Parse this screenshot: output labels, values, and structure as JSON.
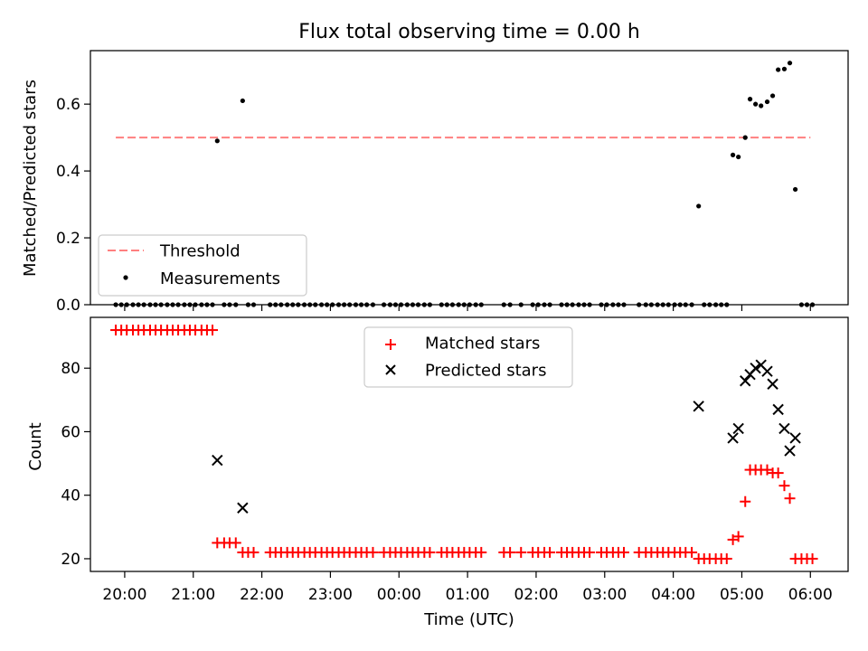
{
  "title": "Flux total observing time = 0.00 h",
  "colors": {
    "threshold": "#ff7f7f",
    "measurement": "#000000",
    "matched": "#ff0000",
    "predicted": "#000000"
  },
  "chart_data": [
    {
      "type": "scatter",
      "ylabel": "Matched/Predicted stars",
      "xlim": [
        19.5,
        30.55
      ],
      "ylim": [
        0,
        0.76
      ],
      "yticks": [
        0.0,
        0.2,
        0.4,
        0.6
      ],
      "ytick_labels": [
        "0.0",
        "0.2",
        "0.4",
        "0.6"
      ],
      "legend_placement": "lower-left",
      "threshold": {
        "name": "Threshold",
        "value": 0.5,
        "x_range": [
          19.87,
          30.0
        ]
      },
      "series": [
        {
          "name": "Measurements",
          "points": [
            [
              21.35,
              0.49
            ],
            [
              21.72,
              0.61
            ],
            [
              28.37,
              0.295
            ],
            [
              28.87,
              0.448
            ],
            [
              28.95,
              0.442
            ],
            [
              29.05,
              0.5
            ],
            [
              29.12,
              0.615
            ],
            [
              29.2,
              0.6
            ],
            [
              29.28,
              0.595
            ],
            [
              29.37,
              0.607
            ],
            [
              29.45,
              0.625
            ],
            [
              29.53,
              0.703
            ],
            [
              29.62,
              0.705
            ],
            [
              29.7,
              0.723
            ],
            [
              29.78,
              0.345
            ]
          ],
          "zero_values_x": [
            19.87,
            19.95,
            20.03,
            20.12,
            20.2,
            20.28,
            20.37,
            20.45,
            20.53,
            20.62,
            20.7,
            20.78,
            20.87,
            20.95,
            21.03,
            21.12,
            21.2,
            21.28,
            21.45,
            21.53,
            21.62,
            21.8,
            21.88,
            22.12,
            22.2,
            22.28,
            22.37,
            22.45,
            22.53,
            22.62,
            22.7,
            22.78,
            22.87,
            22.95,
            23.03,
            23.12,
            23.2,
            23.28,
            23.37,
            23.45,
            23.53,
            23.62,
            23.78,
            23.87,
            23.95,
            24.03,
            24.12,
            24.2,
            24.28,
            24.37,
            24.45,
            24.62,
            24.7,
            24.78,
            24.87,
            24.95,
            25.03,
            25.12,
            25.2,
            25.53,
            25.62,
            25.78,
            25.95,
            26.03,
            26.12,
            26.2,
            26.37,
            26.45,
            26.53,
            26.62,
            26.7,
            26.78,
            26.95,
            27.03,
            27.12,
            27.2,
            27.28,
            27.5,
            27.6,
            27.68,
            27.77,
            27.85,
            27.93,
            28.02,
            28.1,
            28.18,
            28.27,
            28.45,
            28.53,
            28.62,
            28.7,
            28.78,
            29.87,
            29.95,
            30.03
          ]
        }
      ]
    },
    {
      "type": "scatter",
      "title": "",
      "xlabel": "Time (UTC)",
      "ylabel": "Count",
      "xlim": [
        19.5,
        30.55
      ],
      "ylim": [
        16,
        96
      ],
      "yticks": [
        20,
        40,
        60,
        80
      ],
      "ytick_labels": [
        "20",
        "40",
        "60",
        "80"
      ],
      "xticks": [
        20,
        21,
        22,
        23,
        24,
        25,
        26,
        27,
        28,
        29,
        30
      ],
      "xtick_labels": [
        "20:00",
        "21:00",
        "22:00",
        "23:00",
        "00:00",
        "01:00",
        "02:00",
        "03:00",
        "04:00",
        "05:00",
        "06:00"
      ],
      "legend_placement": "upper-center",
      "series": [
        {
          "name": "Matched stars",
          "marker": "+",
          "segments": [
            {
              "y": 92,
              "x": [
                19.87,
                19.95,
                20.03,
                20.12,
                20.2,
                20.28,
                20.37,
                20.45,
                20.53,
                20.62,
                20.7,
                20.78,
                20.87,
                20.95,
                21.03,
                21.12,
                21.2,
                21.28
              ]
            },
            {
              "y": 25,
              "x": [
                21.35,
                21.45,
                21.53,
                21.62
              ]
            },
            {
              "y": 22,
              "x": [
                21.72,
                21.8,
                21.88,
                22.12,
                22.2,
                22.28,
                22.37,
                22.45,
                22.53,
                22.62,
                22.7,
                22.78,
                22.87,
                22.95,
                23.03,
                23.12,
                23.2,
                23.28,
                23.37,
                23.45,
                23.53,
                23.62,
                23.78,
                23.87,
                23.95,
                24.03,
                24.12,
                24.2,
                24.28,
                24.37,
                24.45,
                24.62,
                24.7,
                24.78,
                24.87,
                24.95,
                25.03,
                25.12,
                25.2,
                25.53,
                25.62,
                25.78,
                25.95,
                26.03,
                26.12,
                26.2,
                26.37,
                26.45,
                26.53,
                26.62,
                26.7,
                26.78,
                26.95,
                27.03,
                27.12,
                27.2,
                27.28,
                27.5,
                27.6,
                27.68,
                27.77,
                27.85,
                27.93,
                28.02,
                28.1,
                28.18,
                28.27
              ]
            },
            {
              "y": 20,
              "x": [
                28.37,
                28.45,
                28.53,
                28.62,
                28.7,
                28.78
              ]
            }
          ],
          "points": [
            [
              28.87,
              26
            ],
            [
              28.95,
              27
            ],
            [
              29.05,
              38
            ],
            [
              29.12,
              48
            ],
            [
              29.2,
              48
            ],
            [
              29.28,
              48
            ],
            [
              29.37,
              48
            ],
            [
              29.45,
              47
            ],
            [
              29.53,
              47
            ],
            [
              29.62,
              43
            ],
            [
              29.7,
              39
            ],
            [
              29.78,
              20
            ],
            [
              29.87,
              20
            ],
            [
              29.95,
              20
            ],
            [
              30.03,
              20
            ]
          ]
        },
        {
          "name": "Predicted stars",
          "marker": "x",
          "points": [
            [
              21.35,
              51
            ],
            [
              21.72,
              36
            ],
            [
              28.37,
              68
            ],
            [
              28.87,
              58
            ],
            [
              28.95,
              61
            ],
            [
              29.05,
              76
            ],
            [
              29.12,
              78
            ],
            [
              29.2,
              80
            ],
            [
              29.28,
              81
            ],
            [
              29.37,
              79
            ],
            [
              29.45,
              75
            ],
            [
              29.53,
              67
            ],
            [
              29.62,
              61
            ],
            [
              29.7,
              54
            ],
            [
              29.78,
              58
            ]
          ]
        }
      ]
    }
  ]
}
